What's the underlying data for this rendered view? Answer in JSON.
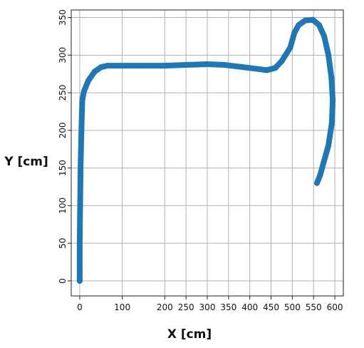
{
  "chart_data": {
    "type": "line",
    "xlabel": "X [cm]",
    "ylabel": "Y [cm]",
    "xlim": [
      -20,
      620
    ],
    "ylim": [
      -20,
      360
    ],
    "xticks": [
      0,
      100,
      200,
      250,
      300,
      350,
      400,
      450,
      500,
      550,
      600
    ],
    "xtick_labels": [
      "0",
      "100",
      "200",
      "250",
      "300",
      "350",
      "400",
      "450",
      "500",
      "550",
      "600"
    ],
    "yticks": [
      0,
      50,
      100,
      150,
      200,
      250,
      300,
      350
    ],
    "ytick_labels": [
      "0",
      "50",
      "100",
      "150",
      "200",
      "250",
      "300",
      "350"
    ],
    "grid": true,
    "series": [
      {
        "color": "#1f77b4",
        "points": [
          [
            0,
            0
          ],
          [
            0,
            10
          ],
          [
            0,
            50
          ],
          [
            1,
            100
          ],
          [
            2,
            150
          ],
          [
            4,
            200
          ],
          [
            6,
            240
          ],
          [
            10,
            252
          ],
          [
            20,
            266
          ],
          [
            35,
            278
          ],
          [
            50,
            284
          ],
          [
            65,
            286
          ],
          [
            100,
            286
          ],
          [
            150,
            286
          ],
          [
            200,
            286
          ],
          [
            250,
            287
          ],
          [
            300,
            288
          ],
          [
            340,
            287
          ],
          [
            400,
            283
          ],
          [
            440,
            280
          ],
          [
            460,
            283
          ],
          [
            475,
            292
          ],
          [
            495,
            310
          ],
          [
            505,
            330
          ],
          [
            515,
            340
          ],
          [
            530,
            346
          ],
          [
            548,
            347
          ],
          [
            563,
            340
          ],
          [
            575,
            325
          ],
          [
            585,
            300
          ],
          [
            592,
            270
          ],
          [
            595,
            240
          ],
          [
            593,
            210
          ],
          [
            585,
            180
          ],
          [
            575,
            160
          ],
          [
            565,
            140
          ],
          [
            558,
            130
          ]
        ]
      }
    ]
  }
}
